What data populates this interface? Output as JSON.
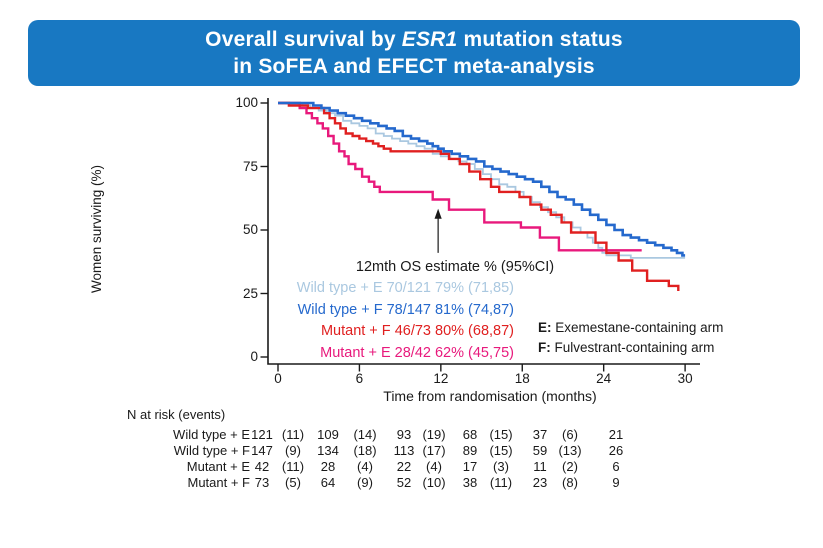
{
  "title": {
    "line1_pre": "Overall survival by ",
    "line1_italic": "ESR1",
    "line1_post": " mutation status",
    "line2": "in SoFEA and EFECT meta-analysis"
  },
  "banner_color": "#1878c2",
  "chart_data": {
    "type": "line",
    "subtype": "kaplan-meier-step",
    "xlabel": "Time from randomisation (months)",
    "ylabel": "Women surviving (%)",
    "xlim": [
      0,
      30
    ],
    "ylim": [
      0,
      100
    ],
    "xticks": [
      0,
      6,
      12,
      18,
      24,
      30
    ],
    "yticks": [
      100,
      75,
      50,
      25,
      0
    ],
    "grid": false,
    "axis_color": "#1a1a1a",
    "annotation": {
      "text": "12mth OS estimate % (95%CI)",
      "arrow_month": 11.8,
      "arrow_from_pct": 41,
      "arrow_to_pct": 56
    },
    "legend": [
      {
        "label": "Wild type + E 70/121 79% (71,85)",
        "color": "#aac8e0"
      },
      {
        "label": "Wild type + F 78/147 81% (74,87)",
        "color": "#2569cd"
      },
      {
        "label": "Mutant + F 46/73 80% (68,87)",
        "color": "#e02020"
      },
      {
        "label": "Mutant + E 28/42 62% (45,75)",
        "color": "#e8197c"
      }
    ],
    "arm_key": [
      {
        "prefix": "E:",
        "text": " Exemestane-containing arm"
      },
      {
        "prefix": "F:",
        "text": " Fulvestrant-containing arm"
      }
    ],
    "series": [
      {
        "name": "Wild type + E",
        "color": "#aac8e0",
        "width": 1.8,
        "points": [
          [
            0,
            100
          ],
          [
            1.8,
            99
          ],
          [
            2.4,
            98
          ],
          [
            3,
            97
          ],
          [
            3.6,
            96
          ],
          [
            4.2,
            95
          ],
          [
            4.8,
            93
          ],
          [
            5.4,
            92
          ],
          [
            6,
            91
          ],
          [
            6.6,
            90
          ],
          [
            7.2,
            88
          ],
          [
            7.8,
            87
          ],
          [
            8.4,
            86
          ],
          [
            9,
            85
          ],
          [
            9.6,
            84
          ],
          [
            10.2,
            83
          ],
          [
            10.8,
            82
          ],
          [
            11.4,
            80
          ],
          [
            12,
            79
          ],
          [
            12.7,
            78
          ],
          [
            13.3,
            77
          ],
          [
            13.9,
            76
          ],
          [
            14.5,
            74
          ],
          [
            15.1,
            72
          ],
          [
            15.7,
            70
          ],
          [
            16.3,
            68
          ],
          [
            16.9,
            67
          ],
          [
            17.5,
            65
          ],
          [
            18.1,
            63
          ],
          [
            18.7,
            61
          ],
          [
            19.3,
            59
          ],
          [
            19.9,
            57
          ],
          [
            20.5,
            55
          ],
          [
            21.1,
            53
          ],
          [
            21.7,
            51
          ],
          [
            22.3,
            49
          ],
          [
            22.8,
            47
          ],
          [
            23.2,
            45
          ],
          [
            23.6,
            43
          ],
          [
            23.9,
            41
          ],
          [
            24.2,
            40
          ],
          [
            26,
            39
          ],
          [
            30,
            39
          ]
        ]
      },
      {
        "name": "Mutant + E",
        "color": "#e8197c",
        "width": 2.4,
        "points": [
          [
            0,
            100
          ],
          [
            1.6,
            98
          ],
          [
            2.1,
            96
          ],
          [
            2.5,
            94
          ],
          [
            2.9,
            92
          ],
          [
            3.3,
            90
          ],
          [
            3.7,
            87
          ],
          [
            4.1,
            84
          ],
          [
            4.5,
            81
          ],
          [
            4.9,
            79
          ],
          [
            5.2,
            76
          ],
          [
            5.7,
            74
          ],
          [
            6.2,
            71
          ],
          [
            6.7,
            69
          ],
          [
            7.1,
            67
          ],
          [
            7.5,
            65
          ],
          [
            11.4,
            62
          ],
          [
            12.6,
            58
          ],
          [
            15.2,
            53
          ],
          [
            17.9,
            51
          ],
          [
            19.3,
            47
          ],
          [
            20.7,
            42
          ],
          [
            26.8,
            42
          ]
        ]
      },
      {
        "name": "Mutant + F",
        "color": "#e02020",
        "width": 2.4,
        "points": [
          [
            0,
            100
          ],
          [
            0.8,
            99
          ],
          [
            2.2,
            98
          ],
          [
            3.4,
            96
          ],
          [
            3.8,
            94
          ],
          [
            4.2,
            92
          ],
          [
            4.6,
            90
          ],
          [
            5,
            88
          ],
          [
            5.5,
            87
          ],
          [
            6,
            86
          ],
          [
            6.5,
            85
          ],
          [
            7,
            84
          ],
          [
            7.4,
            83
          ],
          [
            7.8,
            82
          ],
          [
            8.3,
            81
          ],
          [
            12,
            80
          ],
          [
            12.6,
            78
          ],
          [
            13.4,
            76
          ],
          [
            14.1,
            73
          ],
          [
            14.9,
            70
          ],
          [
            15.7,
            67
          ],
          [
            16.3,
            65
          ],
          [
            17.8,
            63
          ],
          [
            18.6,
            60
          ],
          [
            19.4,
            58
          ],
          [
            20.1,
            56
          ],
          [
            20.9,
            53
          ],
          [
            21.6,
            49
          ],
          [
            23.4,
            45
          ],
          [
            24.2,
            41
          ],
          [
            25.1,
            38
          ],
          [
            26.1,
            34
          ],
          [
            27.2,
            30
          ],
          [
            28.8,
            28
          ],
          [
            29.5,
            26
          ]
        ]
      },
      {
        "name": "Wild type + F",
        "color": "#2569cd",
        "width": 2.6,
        "points": [
          [
            0,
            100
          ],
          [
            2.6,
            99
          ],
          [
            3.2,
            98
          ],
          [
            3.8,
            97
          ],
          [
            4.4,
            96
          ],
          [
            5,
            95
          ],
          [
            5.6,
            94
          ],
          [
            6.2,
            93
          ],
          [
            6.8,
            92
          ],
          [
            7.4,
            91
          ],
          [
            8,
            90
          ],
          [
            8.6,
            89
          ],
          [
            9.2,
            87
          ],
          [
            9.8,
            86
          ],
          [
            10.4,
            85
          ],
          [
            11,
            84
          ],
          [
            11.4,
            83
          ],
          [
            11.8,
            82
          ],
          [
            12.2,
            81
          ],
          [
            12.8,
            80
          ],
          [
            13.4,
            79
          ],
          [
            14,
            78
          ],
          [
            14.6,
            77
          ],
          [
            15.2,
            75
          ],
          [
            15.8,
            74
          ],
          [
            16.4,
            73
          ],
          [
            17,
            72
          ],
          [
            17.6,
            71
          ],
          [
            18.2,
            70
          ],
          [
            18.8,
            69
          ],
          [
            19.4,
            67
          ],
          [
            20,
            65
          ],
          [
            20.6,
            63
          ],
          [
            21.2,
            62
          ],
          [
            21.8,
            60
          ],
          [
            22.4,
            58
          ],
          [
            23,
            56
          ],
          [
            23.6,
            54
          ],
          [
            24.2,
            52
          ],
          [
            24.8,
            50
          ],
          [
            25.4,
            48
          ],
          [
            26,
            47
          ],
          [
            26.6,
            46
          ],
          [
            27.2,
            45
          ],
          [
            27.8,
            44
          ],
          [
            28.4,
            43
          ],
          [
            29,
            42
          ],
          [
            29.4,
            41
          ],
          [
            29.8,
            40
          ],
          [
            30,
            40
          ]
        ]
      }
    ]
  },
  "risk_table": {
    "header": "N at risk (events)",
    "rows": [
      {
        "label": "Wild type + E",
        "values": [
          "121",
          "(11)",
          "109",
          "(14)",
          "93",
          "(19)",
          "68",
          "(15)",
          "37",
          "(6)",
          "21"
        ]
      },
      {
        "label": "Wild type + F",
        "values": [
          "147",
          "(9)",
          "134",
          "(18)",
          "113",
          "(17)",
          "89",
          "(15)",
          "59",
          "(13)",
          "26"
        ]
      },
      {
        "label": "Mutant + E",
        "values": [
          "42",
          "(11)",
          "28",
          "(4)",
          "22",
          "(4)",
          "17",
          "(3)",
          "11",
          "(2)",
          "6"
        ]
      },
      {
        "label": "Mutant + F",
        "values": [
          "73",
          "(5)",
          "64",
          "(9)",
          "52",
          "(10)",
          "38",
          "(11)",
          "23",
          "(8)",
          "9"
        ]
      }
    ]
  }
}
